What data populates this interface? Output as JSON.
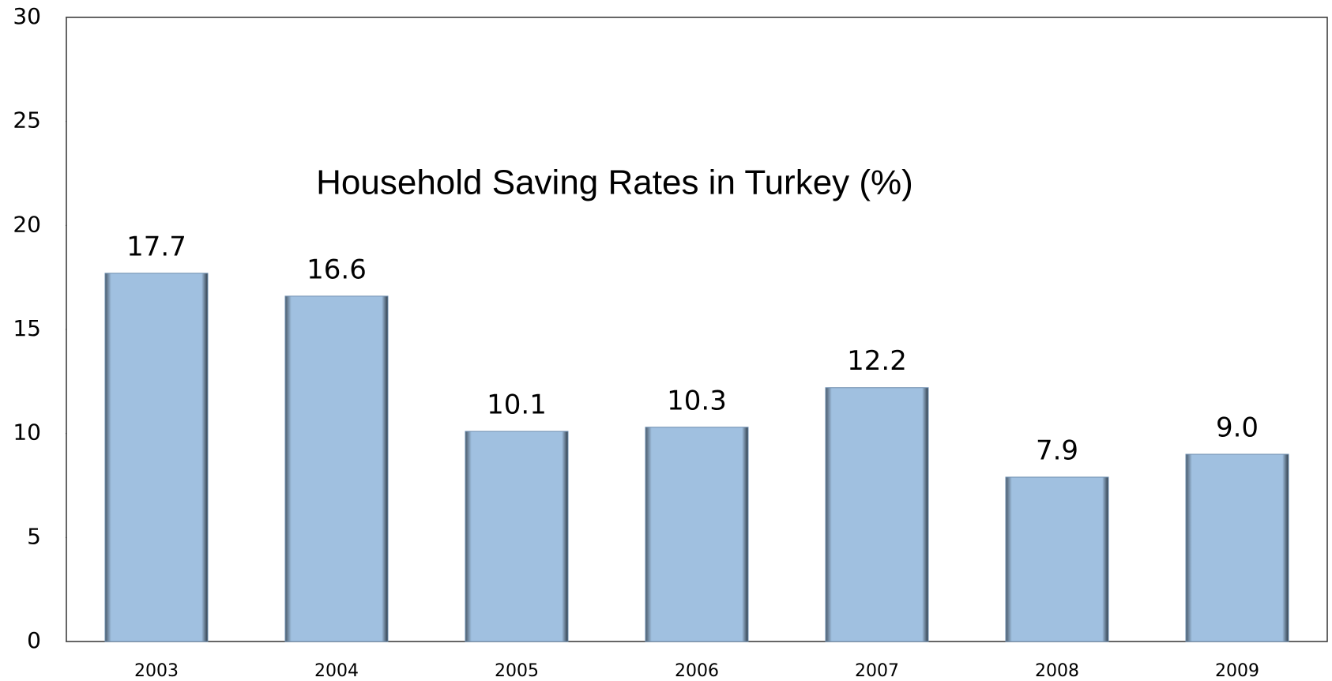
{
  "chart_data": {
    "type": "bar",
    "title": "Household Saving Rates in Turkey (%)",
    "categories": [
      "2003",
      "2004",
      "2005",
      "2006",
      "2007",
      "2008",
      "2009"
    ],
    "values": [
      17.7,
      16.6,
      10.1,
      10.3,
      12.2,
      7.9,
      9.0
    ],
    "value_labels": [
      "17.7",
      "16.6",
      "10.1",
      "10.3",
      "12.2",
      "7.9",
      "9.0"
    ],
    "color": "#a0c0e0",
    "ylim": [
      0,
      30
    ],
    "yticks": [
      0,
      5,
      10,
      15,
      20,
      25,
      30
    ],
    "grid": false
  }
}
